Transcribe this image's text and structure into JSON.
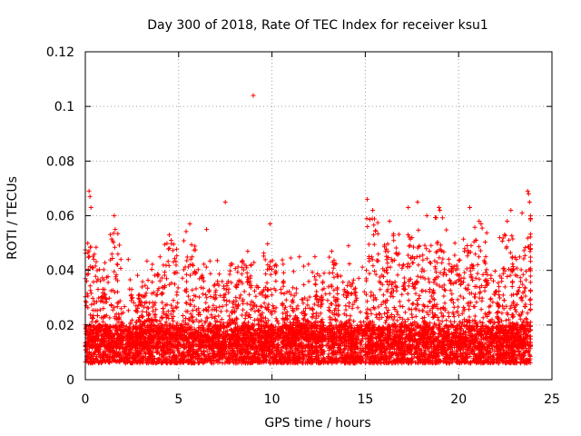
{
  "chart_data": {
    "type": "scatter",
    "title": "Day 300 of 2018, Rate Of TEC Index for receiver ksu1",
    "xlabel": "GPS time / hours",
    "ylabel": "ROTI / TECUs",
    "xlim": [
      0,
      25
    ],
    "ylim": [
      0,
      0.12
    ],
    "xticks": [
      0,
      5,
      10,
      15,
      20,
      25
    ],
    "xtick_labels": [
      "0",
      "5",
      "10",
      "15",
      "20",
      "25"
    ],
    "yticks": [
      0,
      0.02,
      0.04,
      0.06,
      0.08,
      0.1,
      0.12
    ],
    "ytick_labels": [
      "0",
      "0.02",
      "0.04",
      "0.06",
      "0.08",
      "0.1",
      "0.12"
    ],
    "grid": true,
    "marker": "+",
    "series": [
      {
        "name": "ROTI",
        "color": "#ff0000",
        "outliers": [
          [
            9.0,
            0.104
          ],
          [
            7.5,
            0.065
          ],
          [
            0.2,
            0.069
          ],
          [
            0.25,
            0.067
          ],
          [
            0.3,
            0.063
          ],
          [
            1.55,
            0.06
          ],
          [
            1.6,
            0.055
          ],
          [
            5.6,
            0.057
          ],
          [
            9.9,
            0.057
          ],
          [
            15.1,
            0.066
          ],
          [
            15.4,
            0.062
          ],
          [
            16.3,
            0.058
          ],
          [
            17.3,
            0.063
          ],
          [
            17.8,
            0.065
          ],
          [
            18.3,
            0.06
          ],
          [
            18.95,
            0.063
          ],
          [
            19.0,
            0.062
          ],
          [
            20.6,
            0.063
          ],
          [
            21.1,
            0.058
          ],
          [
            21.2,
            0.057
          ],
          [
            22.6,
            0.058
          ],
          [
            22.8,
            0.062
          ],
          [
            23.4,
            0.061
          ],
          [
            23.7,
            0.069
          ],
          [
            23.75,
            0.068
          ],
          [
            23.8,
            0.065
          ],
          [
            2.3,
            0.044
          ],
          [
            4.5,
            0.053
          ],
          [
            4.6,
            0.051
          ],
          [
            6.5,
            0.055
          ],
          [
            8.7,
            0.047
          ],
          [
            12.3,
            0.045
          ],
          [
            13.2,
            0.047
          ],
          [
            14.1,
            0.049
          ],
          [
            17.5,
            0.052
          ],
          [
            19.8,
            0.05
          ],
          [
            22.2,
            0.052
          ]
        ],
        "bursts": [
          [
            0.3,
            0.05
          ],
          [
            0.9,
            0.04
          ],
          [
            1.6,
            0.054
          ],
          [
            2.6,
            0.034
          ],
          [
            3.2,
            0.032
          ],
          [
            3.9,
            0.04
          ],
          [
            4.6,
            0.05
          ],
          [
            5.6,
            0.055
          ],
          [
            6.4,
            0.04
          ],
          [
            7.1,
            0.036
          ],
          [
            7.9,
            0.043
          ],
          [
            8.7,
            0.045
          ],
          [
            9.4,
            0.036
          ],
          [
            9.9,
            0.05
          ],
          [
            10.9,
            0.032
          ],
          [
            11.6,
            0.03
          ],
          [
            12.4,
            0.04
          ],
          [
            13.4,
            0.045
          ],
          [
            14.2,
            0.037
          ],
          [
            15.4,
            0.06
          ],
          [
            16.1,
            0.05
          ],
          [
            16.8,
            0.054
          ],
          [
            17.6,
            0.055
          ],
          [
            18.4,
            0.05
          ],
          [
            19.0,
            0.06
          ],
          [
            19.8,
            0.046
          ],
          [
            20.6,
            0.052
          ],
          [
            21.2,
            0.056
          ],
          [
            21.9,
            0.04
          ],
          [
            22.6,
            0.055
          ],
          [
            23.2,
            0.045
          ],
          [
            23.7,
            0.06
          ]
        ],
        "baseline_range": [
          0.006,
          0.02
        ]
      }
    ]
  }
}
